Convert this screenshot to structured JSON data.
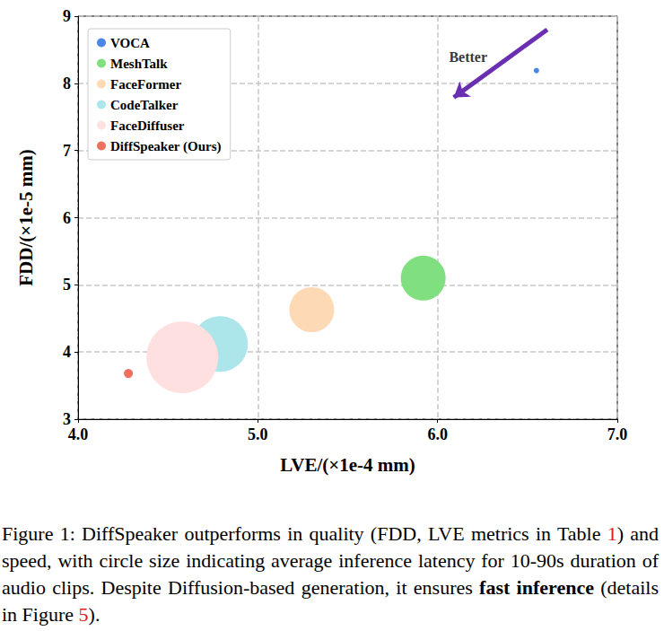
{
  "chart_data": {
    "type": "scatter",
    "xlabel": "LVE/(×1e-4 mm)",
    "ylabel": "FDD/(×1e-5 mm)",
    "xlim": [
      4.0,
      7.0
    ],
    "xticks": [
      {
        "value": 4.0,
        "label": "4.0"
      },
      {
        "value": 5.0,
        "label": "5.0"
      },
      {
        "value": 6.0,
        "label": "6.0"
      },
      {
        "value": 7.0,
        "label": "7.0"
      }
    ],
    "ylim": [
      3,
      9
    ],
    "yticks": [
      3,
      4,
      5,
      6,
      7,
      8,
      9
    ],
    "grid": true,
    "legend": "upper left",
    "series": [
      {
        "name": "VOCA",
        "color": "#4a86e8",
        "x": [
          6.55
        ],
        "values": [
          8.19
        ],
        "size": [
          6
        ]
      },
      {
        "name": "MeshTalk",
        "color": "#80e080",
        "x": [
          5.92
        ],
        "values": [
          5.1
        ],
        "size": [
          50
        ]
      },
      {
        "name": "FaceFormer",
        "color": "#fdd9b5",
        "x": [
          5.3
        ],
        "values": [
          4.63
        ],
        "size": [
          50
        ]
      },
      {
        "name": "CodeTalker",
        "color": "#ade6ea",
        "x": [
          4.79
        ],
        "values": [
          4.12
        ],
        "size": [
          62
        ]
      },
      {
        "name": "FaceDiffuser",
        "color": "#fde0df",
        "x": [
          4.58
        ],
        "values": [
          3.92
        ],
        "size": [
          80
        ]
      },
      {
        "name": "DiffSpeaker (Ours)",
        "color": "#f07060",
        "x": [
          4.28
        ],
        "values": [
          3.68
        ],
        "size": [
          10
        ]
      }
    ],
    "annotations": [
      {
        "text": "Better",
        "x": 6.17,
        "y": 8.39,
        "arrow_from": [
          6.61,
          8.8
        ],
        "arrow_to": [
          6.09,
          7.79
        ],
        "color": "#6a2fb0"
      }
    ]
  },
  "caption": {
    "parts": [
      {
        "text": "Figure 1: DiffSpeaker outperforms in quality (FDD, LVE metrics in Table "
      },
      {
        "text": "1",
        "color": "#e41a1c"
      },
      {
        "text": ") and speed, with circle size indicating average inference latency for 10-90s duration of audio clips. Despite Diffusion-based generation, it ensures "
      },
      {
        "text": "fast inference",
        "bold": true
      },
      {
        "text": " (details in Figure "
      },
      {
        "text": "5",
        "color": "#e41a1c"
      },
      {
        "text": ")."
      }
    ]
  }
}
